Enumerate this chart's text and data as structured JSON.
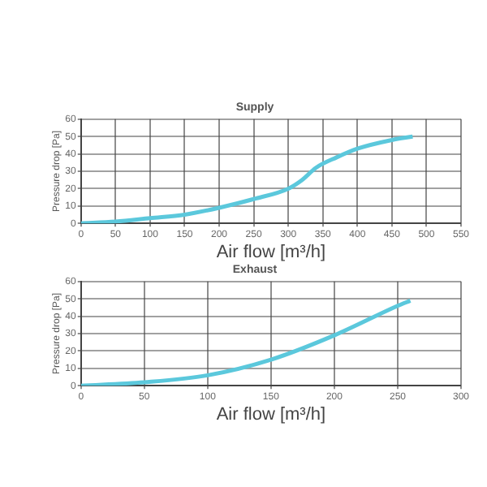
{
  "chart_data": [
    {
      "type": "line",
      "title": "Supply",
      "xlabel": "Air flow [m³/h]",
      "ylabel": "Pressure drop [Pa]",
      "xlim": [
        0,
        550
      ],
      "xticks": [
        0,
        50,
        100,
        150,
        200,
        250,
        300,
        350,
        400,
        450,
        500,
        550
      ],
      "ylim": [
        0,
        60
      ],
      "yticks": [
        0,
        10,
        20,
        30,
        40,
        50,
        60
      ],
      "grid": true,
      "legend": false,
      "marker": "none",
      "line_style": "solid",
      "series": [
        {
          "color": "#5bc8dc",
          "x": [
            0,
            50,
            100,
            150,
            200,
            250,
            300,
            320,
            340,
            370,
            400,
            450,
            480
          ],
          "values": [
            0,
            1,
            3,
            5,
            9,
            14,
            20,
            25,
            32,
            38,
            43,
            48,
            50
          ]
        }
      ]
    },
    {
      "type": "line",
      "title": "Exhaust",
      "xlabel": "Air flow [m³/h]",
      "ylabel": "Pressure drop [Pa]",
      "xlim": [
        0,
        300
      ],
      "xticks": [
        0,
        50,
        100,
        150,
        200,
        250,
        300
      ],
      "ylim": [
        0,
        60
      ],
      "yticks": [
        0,
        10,
        20,
        30,
        40,
        50,
        60
      ],
      "grid": true,
      "legend": false,
      "marker": "none",
      "line_style": "solid",
      "series": [
        {
          "color": "#5bc8dc",
          "x": [
            0,
            50,
            100,
            150,
            200,
            250,
            260
          ],
          "values": [
            0,
            2,
            6,
            15,
            29,
            46,
            49
          ]
        }
      ]
    }
  ]
}
